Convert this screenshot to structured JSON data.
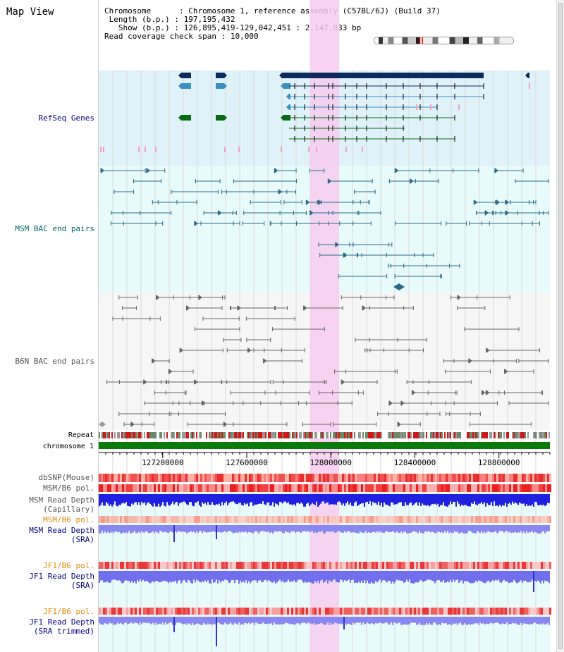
{
  "title": "Map View",
  "header": {
    "chromosome_label": "Chromosome",
    "chromosome_value": "Chromosome 1, reference assembly (C57BL/6J) (Build 37)",
    "length_label": "Length (b.p.)",
    "length_value": "197,195,432",
    "show_label": "Show (b.p.)",
    "show_value": "126,895,419-129,042,451 : 2,147,033 bp",
    "coverage_label": "Read coverage check span",
    "coverage_value": "10,000"
  },
  "tracks": {
    "refseq": "RefSeq Genes",
    "msm_bac": "MSM BAC end pairs",
    "b6n_bac": "B6N BAC end pairs",
    "repeat": "Repeat",
    "chromosome": "chromosome 1",
    "dbsnp": "dbSNP(Mouse)",
    "msm_b6_pol_1": "MSM/B6 pol.",
    "msm_read_depth_cap_1": "MSM Read Depth",
    "msm_read_depth_cap_2": "(Capillary)",
    "msm_b6_pol_2": "MSM/B6 pol.",
    "msm_read_depth_sra_1": "MSM Read Depth",
    "msm_read_depth_sra_2": "(SRA)",
    "jf1_b6_pol_1": "JF1/B6 pol.",
    "jf1_read_depth_sra_1": "JF1 Read Depth",
    "jf1_read_depth_sra_2": "(SRA)",
    "jf1_b6_pol_2": "JF1/B6 pol.",
    "jf1_read_depth_trim_1": "JF1 Read Depth",
    "jf1_read_depth_trim_2": "(SRA trimmed)"
  },
  "axis": {
    "ticks": [
      "127200000",
      "127600000",
      "128000000",
      "128400000",
      "128800000"
    ],
    "tick_values": [
      127200000,
      127600000,
      128000000,
      128400000,
      128800000
    ],
    "range": [
      126895419,
      129042451
    ]
  },
  "highlight_region": [
    127900000,
    128040000
  ],
  "colors": {
    "refseq_bg": "#dff1f9",
    "msm_bg": "#e8fbfb",
    "b6n_bg": "#f6f6f6",
    "refseq_dark": "#0c2a5b",
    "refseq_mid": "#3a8fbf",
    "refseq_green": "#0a6b16",
    "msm_line": "#2a6a8a",
    "b6n_line": "#666666",
    "highlight": "#f7cdf0",
    "chromosome_bar": "#0a7a0a",
    "label_blue": "#000080",
    "label_teal": "#006666",
    "label_orange": "#e08a00",
    "label_gray": "#555555"
  }
}
